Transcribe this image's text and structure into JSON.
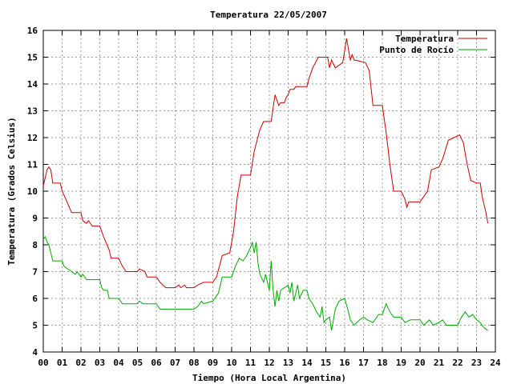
{
  "chart_data": {
    "type": "line",
    "title": "Temperatura 22/05/2007",
    "xlabel": "Tiempo (Hora Local Argentina)",
    "ylabel": "Temperatura (Grados Celsius)",
    "xlim": [
      0,
      24
    ],
    "ylim": [
      4,
      16
    ],
    "grid": true,
    "legend_position": "top-right",
    "x_tick_labels": [
      "00",
      "01",
      "02",
      "03",
      "04",
      "05",
      "06",
      "07",
      "08",
      "09",
      "10",
      "11",
      "12",
      "13",
      "14",
      "15",
      "16",
      "17",
      "18",
      "19",
      "20",
      "21",
      "22",
      "23",
      "24"
    ],
    "y_ticks": [
      4,
      5,
      6,
      7,
      8,
      9,
      10,
      11,
      12,
      13,
      14,
      15,
      16
    ],
    "series": [
      {
        "name": "Temperatura",
        "color": "#cc0000",
        "points": [
          [
            0.0,
            10.2
          ],
          [
            0.1,
            10.5
          ],
          [
            0.2,
            10.8
          ],
          [
            0.3,
            10.9
          ],
          [
            0.4,
            10.8
          ],
          [
            0.5,
            10.3
          ],
          [
            0.9,
            10.3
          ],
          [
            1.0,
            10.0
          ],
          [
            1.2,
            9.7
          ],
          [
            1.5,
            9.2
          ],
          [
            2.0,
            9.2
          ],
          [
            2.1,
            8.9
          ],
          [
            2.3,
            8.8
          ],
          [
            2.4,
            8.9
          ],
          [
            2.6,
            8.7
          ],
          [
            3.0,
            8.7
          ],
          [
            3.2,
            8.3
          ],
          [
            3.5,
            7.8
          ],
          [
            3.6,
            7.5
          ],
          [
            4.0,
            7.5
          ],
          [
            4.2,
            7.2
          ],
          [
            4.4,
            7.0
          ],
          [
            5.0,
            7.0
          ],
          [
            5.1,
            7.1
          ],
          [
            5.4,
            7.0
          ],
          [
            5.5,
            6.8
          ],
          [
            6.0,
            6.8
          ],
          [
            6.2,
            6.6
          ],
          [
            6.5,
            6.4
          ],
          [
            7.0,
            6.4
          ],
          [
            7.2,
            6.5
          ],
          [
            7.3,
            6.4
          ],
          [
            7.5,
            6.5
          ],
          [
            7.6,
            6.4
          ],
          [
            8.0,
            6.4
          ],
          [
            8.2,
            6.5
          ],
          [
            8.5,
            6.6
          ],
          [
            9.0,
            6.6
          ],
          [
            9.2,
            6.8
          ],
          [
            9.5,
            7.6
          ],
          [
            9.9,
            7.7
          ],
          [
            10.1,
            8.5
          ],
          [
            10.3,
            9.8
          ],
          [
            10.5,
            10.6
          ],
          [
            11.0,
            10.6
          ],
          [
            11.2,
            11.5
          ],
          [
            11.5,
            12.3
          ],
          [
            11.7,
            12.6
          ],
          [
            12.1,
            12.6
          ],
          [
            12.2,
            13.1
          ],
          [
            12.3,
            13.6
          ],
          [
            12.4,
            13.4
          ],
          [
            12.5,
            13.2
          ],
          [
            12.6,
            13.3
          ],
          [
            12.8,
            13.3
          ],
          [
            12.9,
            13.5
          ],
          [
            13.0,
            13.6
          ],
          [
            13.1,
            13.8
          ],
          [
            13.3,
            13.8
          ],
          [
            13.4,
            13.9
          ],
          [
            14.0,
            13.9
          ],
          [
            14.1,
            14.2
          ],
          [
            14.3,
            14.6
          ],
          [
            14.6,
            15.0
          ],
          [
            15.1,
            15.0
          ],
          [
            15.2,
            14.6
          ],
          [
            15.3,
            14.9
          ],
          [
            15.5,
            14.6
          ],
          [
            15.9,
            14.8
          ],
          [
            16.1,
            15.7
          ],
          [
            16.2,
            15.3
          ],
          [
            16.3,
            14.9
          ],
          [
            16.4,
            15.1
          ],
          [
            16.5,
            14.9
          ],
          [
            17.1,
            14.8
          ],
          [
            17.3,
            14.5
          ],
          [
            17.5,
            13.2
          ],
          [
            18.0,
            13.2
          ],
          [
            18.2,
            12.2
          ],
          [
            18.4,
            11.0
          ],
          [
            18.6,
            10.0
          ],
          [
            19.0,
            10.0
          ],
          [
            19.2,
            9.7
          ],
          [
            19.3,
            9.4
          ],
          [
            19.4,
            9.6
          ],
          [
            20.0,
            9.6
          ],
          [
            20.2,
            9.8
          ],
          [
            20.4,
            10.0
          ],
          [
            20.6,
            10.8
          ],
          [
            21.0,
            10.9
          ],
          [
            21.2,
            11.2
          ],
          [
            21.5,
            11.9
          ],
          [
            21.8,
            12.0
          ],
          [
            22.1,
            12.1
          ],
          [
            22.3,
            11.8
          ],
          [
            22.5,
            11.0
          ],
          [
            22.7,
            10.4
          ],
          [
            23.0,
            10.3
          ],
          [
            23.2,
            10.3
          ],
          [
            23.3,
            9.8
          ],
          [
            23.5,
            9.2
          ],
          [
            23.6,
            8.8
          ]
        ]
      },
      {
        "name": "Punto de Rocío",
        "color": "#00aa00",
        "points": [
          [
            0.0,
            8.2
          ],
          [
            0.1,
            8.3
          ],
          [
            0.2,
            8.1
          ],
          [
            0.3,
            8.0
          ],
          [
            0.4,
            7.7
          ],
          [
            0.5,
            7.4
          ],
          [
            1.0,
            7.4
          ],
          [
            1.1,
            7.2
          ],
          [
            1.3,
            7.1
          ],
          [
            1.5,
            7.0
          ],
          [
            1.7,
            6.9
          ],
          [
            1.8,
            7.0
          ],
          [
            2.0,
            6.8
          ],
          [
            2.1,
            6.9
          ],
          [
            2.3,
            6.7
          ],
          [
            3.0,
            6.7
          ],
          [
            3.1,
            6.4
          ],
          [
            3.2,
            6.3
          ],
          [
            3.4,
            6.3
          ],
          [
            3.5,
            6.0
          ],
          [
            4.0,
            6.0
          ],
          [
            4.1,
            5.9
          ],
          [
            4.2,
            5.8
          ],
          [
            5.0,
            5.8
          ],
          [
            5.1,
            5.9
          ],
          [
            5.3,
            5.8
          ],
          [
            6.0,
            5.8
          ],
          [
            6.1,
            5.7
          ],
          [
            6.2,
            5.6
          ],
          [
            7.0,
            5.6
          ],
          [
            8.0,
            5.6
          ],
          [
            8.2,
            5.7
          ],
          [
            8.4,
            5.9
          ],
          [
            8.5,
            5.8
          ],
          [
            9.0,
            5.9
          ],
          [
            9.3,
            6.2
          ],
          [
            9.5,
            6.8
          ],
          [
            10.0,
            6.8
          ],
          [
            10.2,
            7.2
          ],
          [
            10.4,
            7.5
          ],
          [
            10.6,
            7.4
          ],
          [
            10.8,
            7.6
          ],
          [
            11.0,
            7.9
          ],
          [
            11.1,
            8.1
          ],
          [
            11.2,
            7.7
          ],
          [
            11.3,
            8.1
          ],
          [
            11.4,
            7.3
          ],
          [
            11.5,
            6.9
          ],
          [
            11.7,
            6.6
          ],
          [
            11.8,
            6.9
          ],
          [
            12.0,
            6.3
          ],
          [
            12.1,
            7.4
          ],
          [
            12.2,
            6.3
          ],
          [
            12.3,
            5.7
          ],
          [
            12.4,
            6.3
          ],
          [
            12.5,
            5.9
          ],
          [
            12.6,
            6.3
          ],
          [
            13.0,
            6.5
          ],
          [
            13.1,
            6.2
          ],
          [
            13.2,
            6.6
          ],
          [
            13.3,
            5.9
          ],
          [
            13.5,
            6.5
          ],
          [
            13.6,
            6.0
          ],
          [
            13.8,
            6.3
          ],
          [
            14.0,
            6.3
          ],
          [
            14.1,
            6.0
          ],
          [
            14.3,
            5.8
          ],
          [
            14.5,
            5.5
          ],
          [
            14.7,
            5.3
          ],
          [
            14.8,
            5.7
          ],
          [
            14.9,
            5.1
          ],
          [
            15.0,
            5.2
          ],
          [
            15.2,
            5.3
          ],
          [
            15.3,
            4.8
          ],
          [
            15.5,
            5.6
          ],
          [
            15.7,
            5.9
          ],
          [
            16.0,
            6.0
          ],
          [
            16.2,
            5.5
          ],
          [
            16.3,
            5.2
          ],
          [
            16.5,
            5.0
          ],
          [
            16.8,
            5.2
          ],
          [
            17.0,
            5.3
          ],
          [
            17.2,
            5.2
          ],
          [
            17.5,
            5.1
          ],
          [
            17.8,
            5.4
          ],
          [
            18.0,
            5.4
          ],
          [
            18.2,
            5.8
          ],
          [
            18.4,
            5.5
          ],
          [
            18.6,
            5.3
          ],
          [
            19.0,
            5.3
          ],
          [
            19.2,
            5.1
          ],
          [
            19.5,
            5.2
          ],
          [
            20.0,
            5.2
          ],
          [
            20.2,
            5.0
          ],
          [
            20.5,
            5.2
          ],
          [
            20.7,
            5.0
          ],
          [
            21.0,
            5.1
          ],
          [
            21.2,
            5.2
          ],
          [
            21.4,
            5.0
          ],
          [
            22.0,
            5.0
          ],
          [
            22.2,
            5.3
          ],
          [
            22.4,
            5.5
          ],
          [
            22.6,
            5.3
          ],
          [
            22.8,
            5.4
          ],
          [
            23.0,
            5.2
          ],
          [
            23.2,
            5.1
          ],
          [
            23.4,
            4.9
          ],
          [
            23.6,
            4.8
          ]
        ]
      }
    ]
  }
}
